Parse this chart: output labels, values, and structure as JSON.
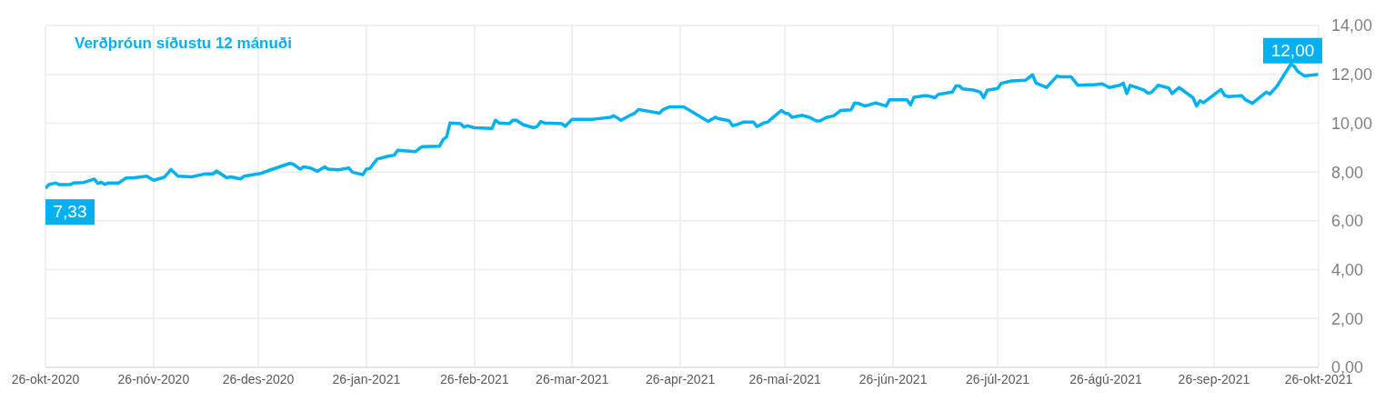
{
  "chart_data": {
    "type": "line",
    "title": "Verðþróun síðustu 12 mánuði",
    "x": [
      "2020-10-26",
      "2020-10-27",
      "2020-10-29",
      "2020-10-30",
      "2020-11-02",
      "2020-11-03",
      "2020-11-06",
      "2020-11-09",
      "2020-11-10",
      "2020-11-11",
      "2020-11-12",
      "2020-11-13",
      "2020-11-16",
      "2020-11-18",
      "2020-11-20",
      "2020-11-24",
      "2020-11-26",
      "2020-11-29",
      "2020-12-01",
      "2020-12-03",
      "2020-12-07",
      "2020-12-09",
      "2020-12-11",
      "2020-12-13",
      "2020-12-14",
      "2020-12-17",
      "2020-12-18",
      "2020-12-21",
      "2020-12-22",
      "2020-12-27",
      "2020-12-29",
      "2021-01-04",
      "2021-01-05",
      "2021-01-07",
      "2021-01-08",
      "2021-01-10",
      "2021-01-12",
      "2021-01-14",
      "2021-01-15",
      "2021-01-18",
      "2021-01-21",
      "2021-01-22",
      "2021-01-25",
      "2021-01-26",
      "2021-01-27",
      "2021-01-29",
      "2021-02-01",
      "2021-02-03",
      "2021-02-04",
      "2021-02-09",
      "2021-02-11",
      "2021-02-16",
      "2021-02-17",
      "2021-02-18",
      "2021-02-19",
      "2021-02-22",
      "2021-02-23",
      "2021-02-24",
      "2021-02-26",
      "2021-03-03",
      "2021-03-04",
      "2021-03-05",
      "2021-03-08",
      "2021-03-09",
      "2021-03-10",
      "2021-03-12",
      "2021-03-15",
      "2021-03-16",
      "2021-03-17",
      "2021-03-18",
      "2021-03-23",
      "2021-03-24",
      "2021-03-26",
      "2021-04-01",
      "2021-04-06",
      "2021-04-07",
      "2021-04-09",
      "2021-04-12",
      "2021-04-13",
      "2021-04-14",
      "2021-04-20",
      "2021-04-21",
      "2021-04-23",
      "2021-04-27",
      "2021-05-02",
      "2021-05-04",
      "2021-05-06",
      "2021-05-07",
      "2021-05-10",
      "2021-05-11",
      "2021-05-12",
      "2021-05-14",
      "2021-05-17",
      "2021-05-18",
      "2021-05-20",
      "2021-05-21",
      "2021-05-25",
      "2021-05-26",
      "2021-05-27",
      "2021-05-28",
      "2021-05-31",
      "2021-06-02",
      "2021-06-04",
      "2021-06-05",
      "2021-06-07",
      "2021-06-09",
      "2021-06-11",
      "2021-06-14",
      "2021-06-15",
      "2021-06-16",
      "2021-06-18",
      "2021-06-21",
      "2021-06-24",
      "2021-06-25",
      "2021-06-30",
      "2021-07-01",
      "2021-07-02",
      "2021-07-05",
      "2021-07-06",
      "2021-07-08",
      "2021-07-09",
      "2021-07-13",
      "2021-07-14",
      "2021-07-15",
      "2021-07-16",
      "2021-07-19",
      "2021-07-21",
      "2021-07-22",
      "2021-07-23",
      "2021-07-26",
      "2021-07-27",
      "2021-07-30",
      "2021-08-03",
      "2021-08-05",
      "2021-08-06",
      "2021-08-09",
      "2021-08-12",
      "2021-08-13",
      "2021-08-16",
      "2021-08-18",
      "2021-08-23",
      "2021-08-25",
      "2021-08-27",
      "2021-08-30",
      "2021-08-31",
      "2021-09-01",
      "2021-09-02",
      "2021-09-06",
      "2021-09-07",
      "2021-09-08",
      "2021-09-10",
      "2021-09-13",
      "2021-09-14",
      "2021-09-16",
      "2021-09-20",
      "2021-09-21",
      "2021-09-22",
      "2021-09-23",
      "2021-09-28",
      "2021-09-29",
      "2021-09-30",
      "2021-10-04",
      "2021-10-05",
      "2021-10-07",
      "2021-10-11",
      "2021-10-12",
      "2021-10-14",
      "2021-10-18",
      "2021-10-19",
      "2021-10-20",
      "2021-10-22",
      "2021-10-26"
    ],
    "series": [
      {
        "color": "#00b0f0",
        "values": [
          7.33,
          7.49,
          7.55,
          7.48,
          7.48,
          7.55,
          7.57,
          7.71,
          7.53,
          7.58,
          7.49,
          7.55,
          7.55,
          7.75,
          7.75,
          7.83,
          7.66,
          7.78,
          8.1,
          7.83,
          7.8,
          7.87,
          7.92,
          7.92,
          8.04,
          7.76,
          7.8,
          7.72,
          7.83,
          7.95,
          8.06,
          8.35,
          8.32,
          8.12,
          8.21,
          8.16,
          8.03,
          8.21,
          8.12,
          8.09,
          8.16,
          7.99,
          7.89,
          8.12,
          8.14,
          8.52,
          8.64,
          8.69,
          8.89,
          8.83,
          9.04,
          9.06,
          9.32,
          9.44,
          10.01,
          9.98,
          9.84,
          9.89,
          9.81,
          9.78,
          10.12,
          10.01,
          9.98,
          10.12,
          10.12,
          9.93,
          9.81,
          9.87,
          10.07,
          10.01,
          9.98,
          9.87,
          10.16,
          10.16,
          10.24,
          10.3,
          10.12,
          10.35,
          10.41,
          10.56,
          10.41,
          10.55,
          10.67,
          10.67,
          10.24,
          10.07,
          10.24,
          10.18,
          10.1,
          9.89,
          9.93,
          10.04,
          10.04,
          9.86,
          10.01,
          10.04,
          10.52,
          10.41,
          10.39,
          10.24,
          10.32,
          10.24,
          10.09,
          10.09,
          10.24,
          10.3,
          10.52,
          10.55,
          10.83,
          10.81,
          10.7,
          10.83,
          10.7,
          10.96,
          10.96,
          10.75,
          11.06,
          11.12,
          11.12,
          11.04,
          11.18,
          11.27,
          11.52,
          11.52,
          11.4,
          11.36,
          11.27,
          11.04,
          11.35,
          11.42,
          11.63,
          11.73,
          11.76,
          11.98,
          11.64,
          11.46,
          11.93,
          11.9,
          11.9,
          11.55,
          11.58,
          11.61,
          11.46,
          11.55,
          11.64,
          11.21,
          11.55,
          11.35,
          11.23,
          11.25,
          11.55,
          11.44,
          11.21,
          11.46,
          11.04,
          10.7,
          10.92,
          10.84,
          11.38,
          11.15,
          11.09,
          11.12,
          10.96,
          10.81,
          11.27,
          11.19,
          11.5,
          12.41,
          12.33,
          12.12,
          11.93,
          12.0
        ]
      }
    ],
    "annotations": [
      {
        "text": "7,33",
        "x": "2020-10-26",
        "y": 7.33
      },
      {
        "text": "12,00",
        "x": "2021-10-26",
        "y": 12.0
      }
    ],
    "xlim": [
      "2020-10-26",
      "2021-10-26"
    ],
    "xticks": [
      {
        "value": "2020-10-26",
        "label": "26-okt-2020"
      },
      {
        "value": "2020-11-26",
        "label": "26-nóv-2020"
      },
      {
        "value": "2020-12-26",
        "label": "26-des-2020"
      },
      {
        "value": "2021-01-26",
        "label": "26-jan-2021"
      },
      {
        "value": "2021-02-26",
        "label": "26-feb-2021"
      },
      {
        "value": "2021-03-26",
        "label": "26-mar-2021"
      },
      {
        "value": "2021-04-26",
        "label": "26-apr-2021"
      },
      {
        "value": "2021-05-26",
        "label": "26-maí-2021"
      },
      {
        "value": "2021-06-26",
        "label": "26-jún-2021"
      },
      {
        "value": "2021-07-26",
        "label": "26-júl-2021"
      },
      {
        "value": "2021-08-26",
        "label": "26-ágú-2021"
      },
      {
        "value": "2021-09-26",
        "label": "26-sep-2021"
      },
      {
        "value": "2021-10-26",
        "label": "26-okt-2021"
      }
    ],
    "ylim": [
      0,
      14
    ],
    "yticks": [
      {
        "value": 0,
        "label": "0,00"
      },
      {
        "value": 2,
        "label": "2,00"
      },
      {
        "value": 4,
        "label": "4,00"
      },
      {
        "value": 6,
        "label": "6,00"
      },
      {
        "value": 8,
        "label": "8,00"
      },
      {
        "value": 10,
        "label": "10,00"
      },
      {
        "value": 12,
        "label": "12,00"
      },
      {
        "value": 14,
        "label": "14,00"
      }
    ],
    "grid": true,
    "legend": false,
    "marker": "none",
    "line_style": "solid"
  }
}
